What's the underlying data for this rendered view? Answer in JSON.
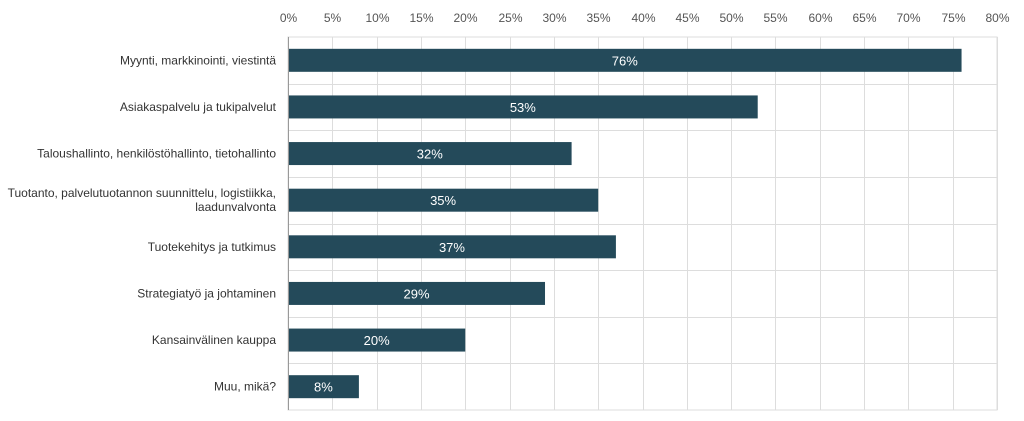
{
  "chart_data": {
    "type": "bar",
    "orientation": "horizontal",
    "categories": [
      [
        "Myynti, markkinointi, viestintä"
      ],
      [
        "Asiakaspalvelu ja tukipalvelut"
      ],
      [
        "Taloushallinto, henkilöstöhallinto, tietohallinto"
      ],
      [
        "Tuotanto, palvelutuotannon suunnittelu, logistiikka,",
        "laadunvalvonta"
      ],
      [
        "Tuotekehitys ja tutkimus"
      ],
      [
        "Strategiatyö ja johtaminen"
      ],
      [
        "Kansainvälinen kauppa"
      ],
      [
        "Muu, mikä?"
      ]
    ],
    "values": [
      76,
      53,
      32,
      35,
      37,
      29,
      20,
      8
    ],
    "data_labels": [
      "76%",
      "53%",
      "32%",
      "35%",
      "37%",
      "29%",
      "20%",
      "8%"
    ],
    "x_ticks": [
      0,
      5,
      10,
      15,
      20,
      25,
      30,
      35,
      40,
      45,
      50,
      55,
      60,
      65,
      70,
      75,
      80
    ],
    "x_tick_labels": [
      "0%",
      "5%",
      "10%",
      "15%",
      "20%",
      "25%",
      "30%",
      "35%",
      "40%",
      "45%",
      "50%",
      "55%",
      "60%",
      "65%",
      "70%",
      "75%",
      "80%"
    ],
    "xlim": [
      0,
      80
    ],
    "x_axis_position": "top",
    "grid": true,
    "legend": "none",
    "bar_color": "#244a5a",
    "grid_color": "#dddddd"
  }
}
